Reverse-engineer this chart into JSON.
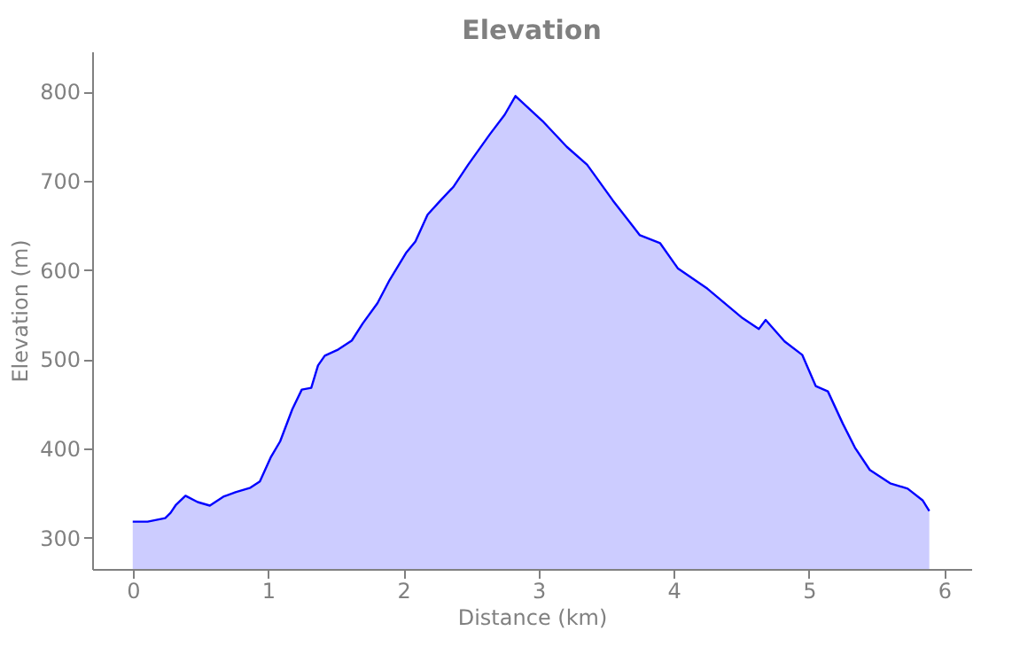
{
  "chart_data": {
    "type": "area",
    "title": "Elevation",
    "xlabel": "Distance (km)",
    "ylabel": "Elevation (m)",
    "x": [
      0,
      0.11,
      0.24,
      0.28,
      0.32,
      0.39,
      0.48,
      0.57,
      0.67,
      0.76,
      0.87,
      0.94,
      1.02,
      1.09,
      1.18,
      1.25,
      1.32,
      1.37,
      1.42,
      1.52,
      1.62,
      1.7,
      1.81,
      1.9,
      2.02,
      2.09,
      2.18,
      2.27,
      2.37,
      2.48,
      2.64,
      2.75,
      2.83,
      3.03,
      3.21,
      3.36,
      3.55,
      3.75,
      3.9,
      4.03,
      4.25,
      4.51,
      4.63,
      4.68,
      4.82,
      4.95,
      5.05,
      5.14,
      5.25,
      5.34,
      5.45,
      5.6,
      5.73,
      5.84,
      5.89
    ],
    "series": [
      {
        "color": "#0000ff",
        "values": [
          318,
          318,
          322,
          328,
          337,
          347,
          340,
          336,
          346,
          351,
          356,
          363,
          390,
          408,
          444,
          466,
          468,
          493,
          504,
          511,
          521,
          540,
          563,
          589,
          619,
          632,
          662,
          677,
          693,
          718,
          752,
          774,
          795,
          767,
          738,
          718,
          678,
          639,
          630,
          602,
          579,
          546,
          534,
          544,
          520,
          505,
          470,
          464,
          428,
          401,
          376,
          361,
          355,
          342,
          330
        ]
      }
    ],
    "xlim": [
      -0.3,
      6.2
    ],
    "ylim": [
      265,
      845
    ],
    "xticks": [
      0,
      1,
      2,
      3,
      4,
      5,
      6
    ],
    "yticks": [
      300,
      400,
      500,
      600,
      700,
      800
    ],
    "grid": false
  }
}
